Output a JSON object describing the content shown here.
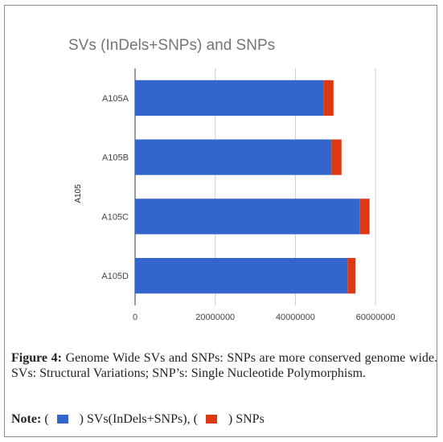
{
  "chart_data": {
    "type": "bar",
    "orientation": "horizontal",
    "stacked": true,
    "title": "SVs (InDels+SNPs) and SNPs",
    "ylabel": "A105",
    "xlabel": "",
    "categories": [
      "A105A",
      "A105B",
      "A105C",
      "A105D"
    ],
    "series": [
      {
        "name": "SVs(InDels+SNPs)",
        "color": "#3366cc",
        "values": [
          47000000,
          49000000,
          56000000,
          53000000
        ]
      },
      {
        "name": "SNPs",
        "color": "#dc3912",
        "values": [
          2500000,
          2500000,
          2500000,
          2000000
        ]
      }
    ],
    "xlim": [
      0,
      70000000
    ],
    "xticks": [
      0,
      20000000,
      40000000,
      60000000
    ],
    "xtick_labels": [
      "0",
      "20000000",
      "40000000",
      "60000000"
    ],
    "grid": true
  },
  "caption": {
    "label": "Figure 4:",
    "text": " Genome Wide SVs and SNPs: SNPs are more conserved genome wide. SVs: Structural Variations; SNP’s: Single Nucleotide Polymorphism."
  },
  "note": {
    "label": "Note:",
    "open1": " (",
    "item1": ") SVs(InDels+SNPs), (",
    "item2": ") SNPs",
    "color1": "#3366cc",
    "color2": "#dc3912"
  }
}
